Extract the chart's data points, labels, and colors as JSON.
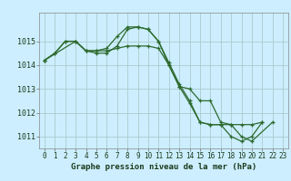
{
  "bg_color": "#cceeff",
  "grid_color": "#aacccc",
  "line_color": "#2d6a2d",
  "marker": "+",
  "markersize": 3,
  "linewidth": 0.9,
  "xlabel": "Graphe pression niveau de la mer (hPa)",
  "xlabel_fontsize": 6.5,
  "xtick_labels": [
    "0",
    "1",
    "2",
    "3",
    "4",
    "5",
    "6",
    "7",
    "8",
    "9",
    "10",
    "11",
    "12",
    "13",
    "14",
    "15",
    "16",
    "17",
    "18",
    "19",
    "20",
    "21",
    "22",
    "23"
  ],
  "ylim": [
    1010.5,
    1016.2
  ],
  "yticks": [
    1011,
    1012,
    1013,
    1014,
    1015
  ],
  "ytick_fontsize": 6,
  "xtick_fontsize": 5.5,
  "series": [
    [
      1014.2,
      1014.5,
      1015.0,
      1015.0,
      1014.6,
      1014.6,
      1014.7,
      1015.2,
      1015.6,
      1015.6,
      1015.5,
      1015.0,
      1014.1,
      1013.2,
      1012.5,
      1011.6,
      1011.5,
      1011.5,
      1011.0,
      1010.8,
      1011.0,
      1011.6,
      null,
      null
    ],
    [
      1014.2,
      1014.5,
      1015.0,
      1015.0,
      1014.6,
      1014.6,
      1014.6,
      1014.7,
      1014.8,
      1014.8,
      1014.8,
      1014.7,
      1014.0,
      1013.1,
      1012.4,
      1011.6,
      1011.5,
      1011.5,
      1011.5,
      1011.5,
      1011.5,
      1011.6,
      null,
      null
    ],
    [
      1014.2,
      null,
      null,
      1015.0,
      1014.6,
      1014.5,
      1014.5,
      1014.8,
      1015.5,
      1015.6,
      1015.5,
      1015.0,
      1014.0,
      1013.1,
      1013.0,
      1012.5,
      1012.5,
      1011.6,
      1011.5,
      1011.0,
      1010.8,
      null,
      1011.6,
      null
    ]
  ]
}
